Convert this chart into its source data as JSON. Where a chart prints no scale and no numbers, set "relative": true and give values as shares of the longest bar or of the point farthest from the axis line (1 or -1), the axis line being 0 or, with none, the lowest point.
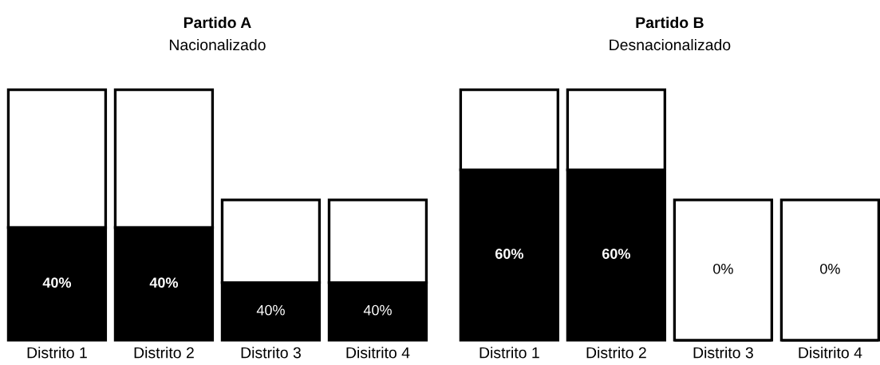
{
  "chart_data": [
    {
      "type": "bar",
      "title": "Partido A",
      "subtitle": "Nacionalizado",
      "categories": [
        "Distrito 1",
        "Distrito 2",
        "Distrito 3",
        "Disitrito 4"
      ],
      "stacked": true,
      "relative": true,
      "grid": false,
      "legend": false,
      "series": [
        {
          "color": "#000000",
          "values": [
            0.45,
            0.45,
            0.23,
            0.23
          ]
        },
        {
          "color": "#ffffff",
          "values": [
            0.55,
            0.55,
            0.33,
            0.33
          ]
        }
      ],
      "annotations": [
        "40%",
        "40%",
        "40%",
        "40%"
      ]
    },
    {
      "type": "bar",
      "title": "Partido B",
      "subtitle": "Desnacionalizado",
      "categories": [
        "Distrito 1",
        "Distrito 2",
        "Distrito 3",
        "Disitrito 4"
      ],
      "stacked": true,
      "relative": true,
      "grid": false,
      "legend": false,
      "series": [
        {
          "color": "#000000",
          "values": [
            0.68,
            0.68,
            0,
            0
          ]
        },
        {
          "color": "#ffffff",
          "values": [
            0.32,
            0.32,
            0.56,
            0.56
          ]
        }
      ],
      "annotations": [
        "60%",
        "60%",
        "0%",
        "0%"
      ]
    }
  ]
}
